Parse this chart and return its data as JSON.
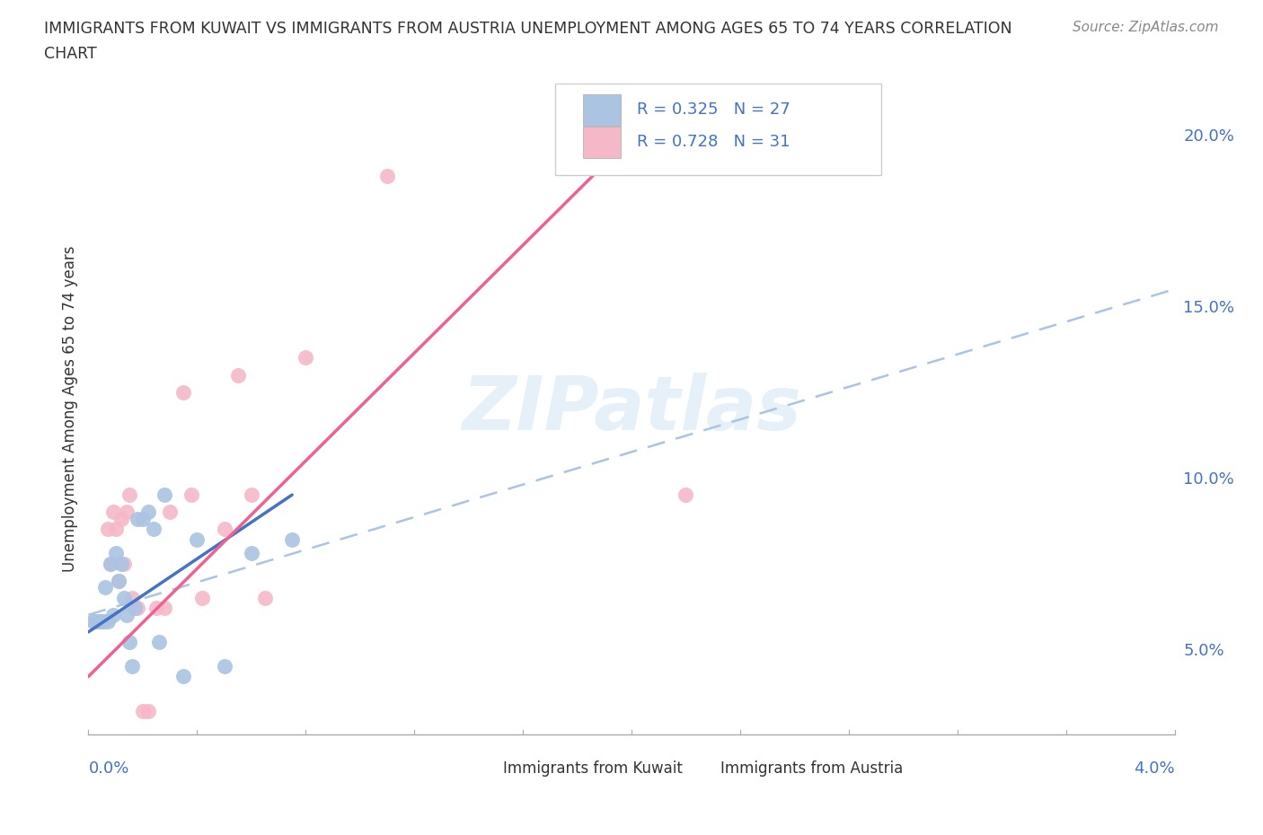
{
  "title_line1": "IMMIGRANTS FROM KUWAIT VS IMMIGRANTS FROM AUSTRIA UNEMPLOYMENT AMONG AGES 65 TO 74 YEARS CORRELATION",
  "title_line2": "CHART",
  "source_text": "Source: ZipAtlas.com",
  "ylabel": "Unemployment Among Ages 65 to 74 years",
  "xlim": [
    0.0,
    4.0
  ],
  "ylim": [
    2.5,
    21.5
  ],
  "yticks_right": [
    5.0,
    10.0,
    15.0,
    20.0
  ],
  "ytick_labels_right": [
    "5.0%",
    "10.0%",
    "15.0%",
    "20.0%"
  ],
  "kuwait_color": "#aac4e2",
  "austria_color": "#f5b8c8",
  "kuwait_line_color": "#4472c4",
  "austria_line_color": "#f06090",
  "dashed_line_color": "#aac4e2",
  "kuwait_R": "0.325",
  "kuwait_N": "27",
  "austria_R": "0.728",
  "austria_N": "31",
  "kuwait_scatter_x": [
    0.02,
    0.03,
    0.04,
    0.05,
    0.06,
    0.07,
    0.08,
    0.09,
    0.1,
    0.11,
    0.12,
    0.13,
    0.14,
    0.15,
    0.16,
    0.17,
    0.18,
    0.2,
    0.22,
    0.24,
    0.26,
    0.28,
    0.35,
    0.4,
    0.5,
    0.6,
    0.75
  ],
  "kuwait_scatter_y": [
    5.8,
    5.8,
    5.8,
    5.8,
    6.8,
    5.8,
    7.5,
    6.0,
    7.8,
    7.0,
    7.5,
    6.5,
    6.0,
    5.2,
    4.5,
    6.2,
    8.8,
    8.8,
    9.0,
    8.5,
    5.2,
    9.5,
    4.2,
    8.2,
    4.5,
    7.8,
    8.2
  ],
  "austria_scatter_x": [
    0.02,
    0.03,
    0.04,
    0.05,
    0.06,
    0.07,
    0.08,
    0.09,
    0.1,
    0.11,
    0.12,
    0.13,
    0.14,
    0.15,
    0.16,
    0.18,
    0.2,
    0.22,
    0.25,
    0.28,
    0.3,
    0.35,
    0.38,
    0.42,
    0.5,
    0.55,
    0.6,
    0.65,
    0.8,
    1.1,
    2.2
  ],
  "austria_scatter_y": [
    5.8,
    5.8,
    5.8,
    5.8,
    5.8,
    8.5,
    7.5,
    9.0,
    8.5,
    7.0,
    8.8,
    7.5,
    9.0,
    9.5,
    6.5,
    6.2,
    3.2,
    3.2,
    6.2,
    6.2,
    9.0,
    12.5,
    9.5,
    6.5,
    8.5,
    13.0,
    9.5,
    6.5,
    13.5,
    18.8,
    9.5
  ],
  "kuwait_line_x": [
    0.0,
    0.75
  ],
  "kuwait_line_y": [
    5.5,
    9.5
  ],
  "austria_line_x": [
    0.0,
    2.2
  ],
  "austria_line_y": [
    4.2,
    21.5
  ],
  "dashed_line_x": [
    0.0,
    4.0
  ],
  "dashed_line_y": [
    6.0,
    15.5
  ],
  "watermark": "ZIPatlas",
  "background_color": "#ffffff",
  "grid_color": "#cccccc",
  "text_color": "#333333",
  "right_tick_color": "#4472c4",
  "legend_text_color": "#4472c4",
  "bottom_legend_kuwait": "Immigrants from Kuwait",
  "bottom_legend_austria": "Immigrants from Austria"
}
